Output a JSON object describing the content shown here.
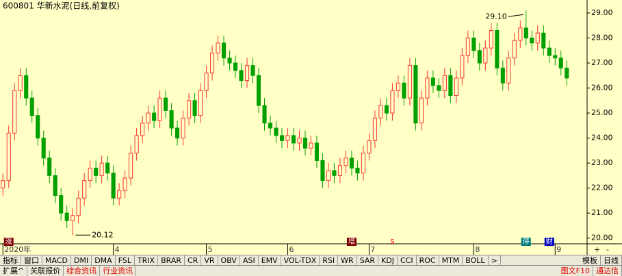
{
  "chart_data": {
    "type": "candlestick",
    "title": "600801 华新水泥(日线,前复权)",
    "up_color": "#ff3232",
    "down_color": "#00a000",
    "open": [
      22.0,
      22.3,
      24.2,
      25.9,
      26.5,
      25.6,
      24.9,
      24.0,
      23.2,
      22.5,
      21.7,
      21.0,
      20.7,
      20.9,
      21.6,
      22.3,
      22.8,
      22.5,
      23.0,
      22.6,
      21.6,
      21.9,
      22.4,
      23.4,
      24.1,
      24.6,
      25.0,
      24.7,
      25.6,
      25.1,
      24.4,
      24.0,
      24.8,
      25.5,
      24.9,
      25.9,
      26.6,
      27.4,
      27.8,
      27.2,
      27.0,
      26.7,
      26.3,
      26.9,
      26.5,
      25.3,
      24.6,
      24.4,
      24.1,
      23.9,
      24.1,
      23.8,
      24.0,
      23.6,
      23.8,
      23.1,
      22.3,
      22.7,
      22.5,
      22.9,
      23.2,
      22.8,
      22.6,
      23.4,
      23.9,
      24.8,
      25.3,
      25.0,
      25.9,
      26.2,
      25.6,
      26.9,
      24.6,
      25.6,
      26.4,
      26.1,
      25.9,
      26.5,
      25.7,
      26.4,
      27.3,
      28.0,
      27.5,
      27.0,
      27.6,
      28.3,
      26.8,
      26.2,
      27.2,
      27.9,
      28.4,
      28.0,
      27.8,
      28.2,
      27.6,
      27.3,
      27.2,
      26.8
    ],
    "high": [
      22.6,
      24.5,
      26.2,
      26.8,
      26.8,
      25.9,
      25.2,
      24.3,
      23.5,
      22.8,
      22.0,
      21.3,
      21.2,
      21.9,
      22.6,
      23.1,
      23.1,
      23.3,
      23.3,
      22.9,
      22.2,
      22.7,
      23.7,
      24.4,
      24.9,
      25.3,
      25.3,
      25.9,
      25.9,
      25.4,
      24.7,
      25.1,
      25.8,
      25.8,
      26.2,
      26.9,
      27.7,
      28.1,
      28.1,
      27.5,
      27.3,
      27.0,
      27.2,
      27.2,
      26.8,
      25.6,
      24.9,
      24.7,
      24.4,
      24.4,
      24.4,
      24.3,
      24.3,
      24.1,
      24.1,
      23.4,
      23.0,
      23.0,
      23.2,
      23.5,
      23.5,
      23.1,
      23.7,
      24.2,
      25.1,
      25.6,
      25.6,
      26.2,
      26.5,
      26.5,
      27.2,
      27.2,
      25.9,
      26.7,
      26.7,
      26.4,
      26.8,
      26.8,
      26.7,
      27.6,
      28.3,
      28.3,
      27.8,
      27.9,
      28.6,
      28.6,
      27.1,
      27.5,
      28.2,
      28.7,
      29.1,
      28.3,
      28.5,
      28.5,
      27.9,
      27.6,
      27.5,
      27.1
    ],
    "low": [
      21.7,
      22.0,
      23.9,
      25.6,
      25.3,
      24.6,
      23.7,
      22.9,
      22.2,
      21.4,
      20.7,
      20.4,
      20.12,
      20.6,
      21.3,
      22.0,
      22.2,
      22.2,
      22.3,
      21.3,
      21.3,
      21.6,
      22.1,
      23.1,
      23.8,
      24.3,
      24.4,
      24.4,
      24.8,
      24.1,
      23.7,
      23.7,
      24.5,
      24.6,
      24.6,
      25.6,
      26.3,
      27.1,
      26.9,
      26.7,
      26.4,
      26.0,
      26.0,
      26.2,
      25.0,
      24.3,
      24.1,
      23.8,
      23.6,
      23.6,
      23.5,
      23.5,
      23.3,
      23.3,
      22.8,
      22.0,
      22.0,
      22.2,
      22.2,
      22.6,
      22.5,
      22.3,
      22.3,
      23.1,
      23.6,
      24.5,
      24.7,
      24.7,
      25.6,
      25.3,
      25.3,
      24.3,
      24.3,
      25.3,
      25.8,
      25.6,
      25.6,
      25.4,
      25.4,
      26.1,
      27.0,
      27.2,
      26.7,
      26.7,
      27.3,
      26.5,
      25.9,
      25.9,
      26.9,
      27.6,
      27.7,
      27.5,
      27.5,
      27.3,
      27.0,
      26.9,
      26.5,
      26.1
    ],
    "close": [
      22.3,
      24.2,
      25.9,
      26.5,
      25.6,
      24.9,
      24.0,
      23.2,
      22.5,
      21.7,
      21.0,
      20.7,
      20.9,
      21.6,
      22.3,
      22.8,
      22.5,
      23.0,
      22.6,
      21.6,
      21.9,
      22.4,
      23.4,
      24.1,
      24.6,
      25.0,
      24.7,
      25.6,
      25.1,
      24.4,
      24.0,
      24.8,
      25.5,
      24.9,
      25.9,
      26.6,
      27.4,
      27.8,
      27.2,
      27.0,
      26.7,
      26.3,
      26.9,
      26.5,
      25.3,
      24.6,
      24.4,
      24.1,
      23.9,
      24.1,
      23.8,
      24.0,
      23.6,
      23.8,
      23.1,
      22.3,
      22.7,
      22.5,
      22.9,
      23.2,
      22.8,
      22.6,
      23.4,
      23.9,
      24.8,
      25.3,
      25.0,
      25.9,
      26.2,
      25.6,
      26.9,
      24.6,
      25.6,
      26.4,
      26.1,
      25.9,
      26.5,
      25.7,
      26.4,
      27.3,
      28.0,
      27.5,
      27.0,
      27.6,
      28.3,
      26.8,
      26.2,
      27.2,
      27.9,
      28.4,
      28.0,
      27.8,
      28.2,
      27.6,
      27.3,
      27.2,
      26.8,
      26.4
    ],
    "xlim": [
      -0.5,
      100.5
    ],
    "xticks": [
      {
        "value": 0,
        "label": "2020年"
      },
      {
        "value": 19,
        "label": "4"
      },
      {
        "value": 35,
        "label": "5"
      },
      {
        "value": 49,
        "label": "6"
      },
      {
        "value": 63,
        "label": "7"
      },
      {
        "value": 81,
        "label": "8"
      },
      {
        "value": 95,
        "label": "9"
      }
    ],
    "ylim": [
      19.8,
      29.3
    ],
    "yticks": [
      {
        "value": 20,
        "label": "20.00"
      },
      {
        "value": 21,
        "label": "21.00"
      },
      {
        "value": 22,
        "label": "22.00"
      },
      {
        "value": 23,
        "label": "23.00"
      },
      {
        "value": 24,
        "label": "24.00"
      },
      {
        "value": 25,
        "label": "25.00"
      },
      {
        "value": 26,
        "label": "26.00"
      },
      {
        "value": 27,
        "label": "27.00"
      },
      {
        "value": 28,
        "label": "28.00"
      },
      {
        "value": 29,
        "label": "29.00"
      }
    ],
    "annotations": [
      {
        "label": "29.10",
        "value": 29.1,
        "x": 90,
        "side": "left"
      },
      {
        "label": "20.12",
        "value": 20.12,
        "x": 12,
        "side": "right"
      }
    ],
    "markers": [
      {
        "label": "涨",
        "x": 1,
        "color": "#800000"
      },
      {
        "label": "增",
        "x": 60,
        "color": "#800000"
      },
      {
        "label": "S",
        "x": 67,
        "color": "#ff0000"
      },
      {
        "label": "停",
        "x": 90,
        "color": "#008080"
      },
      {
        "label": "财",
        "x": 94,
        "color": "#0000c0"
      }
    ],
    "zoom": [
      "+",
      "-"
    ]
  },
  "toolbar": {
    "tabs": [
      "指标",
      "窗口",
      "MACD",
      "DMI",
      "DMA",
      "FSL",
      "TRIX",
      "BRAR",
      "CR",
      "VR",
      "OBV",
      "ASI",
      "EMV",
      "VOL-TDX",
      "RSI",
      "WR",
      "SAR",
      "KDJ",
      "CCI",
      "ROC",
      "MTM",
      "BOLL",
      ">"
    ],
    "right": [
      "模板",
      "日线"
    ]
  },
  "bottom_bar": {
    "tabs": [
      "扩展^",
      "关联报价",
      "综合资讯",
      "行业资讯"
    ],
    "right": [
      "图文F10",
      "通达信"
    ]
  }
}
